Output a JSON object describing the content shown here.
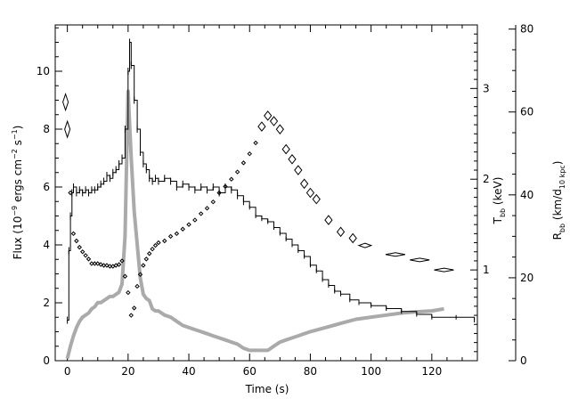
{
  "chart_data": {
    "type": "line",
    "grid": false,
    "legend": "none",
    "axes": {
      "x": {
        "label": "Time (s)",
        "range": [
          -4,
          135
        ],
        "ticks": [
          0,
          20,
          40,
          60,
          80,
          100,
          120
        ]
      },
      "y_left": {
        "label_main": "Flux (10",
        "label_exp1": "−9",
        "label_mid": " ergs cm",
        "label_exp2": "−2",
        "label_mid2": " s",
        "label_exp3": "−1",
        "label_end": ")",
        "range": [
          0,
          11.6
        ],
        "ticks": [
          0,
          2,
          4,
          6,
          8,
          10
        ]
      },
      "y_temp": {
        "label_main": "T",
        "label_sub": "bb",
        "label_end": " (keV)",
        "range": [
          0,
          3.7
        ],
        "ticks": [
          1,
          2,
          3
        ]
      },
      "y_radius": {
        "label_main": "R",
        "label_sub1": "bb",
        "label_mid": " (km/d",
        "label_sub2": "10 kpc",
        "label_end": ")",
        "range": [
          0,
          81
        ],
        "ticks": [
          0,
          20,
          40,
          60,
          80
        ]
      }
    },
    "series": [
      {
        "role": "flux",
        "axis": "y_left",
        "color": "#000000",
        "points": [
          [
            0,
            1.4
          ],
          [
            0.5,
            3.8
          ],
          [
            1,
            5.0
          ],
          [
            1.5,
            5.8
          ],
          [
            2,
            6.0
          ],
          [
            3,
            5.8
          ],
          [
            4,
            5.9
          ],
          [
            5,
            5.8
          ],
          [
            6,
            5.9
          ],
          [
            7,
            5.8
          ],
          [
            8,
            5.9
          ],
          [
            9,
            5.9
          ],
          [
            10,
            6.0
          ],
          [
            11,
            6.1
          ],
          [
            12,
            6.2
          ],
          [
            13,
            6.4
          ],
          [
            14,
            6.3
          ],
          [
            15,
            6.5
          ],
          [
            16,
            6.6
          ],
          [
            17,
            6.8
          ],
          [
            18,
            7.0
          ],
          [
            19,
            8.0
          ],
          [
            20,
            10.0
          ],
          [
            20.5,
            11.0
          ],
          [
            21,
            10.2
          ],
          [
            22,
            9.0
          ],
          [
            23,
            8.0
          ],
          [
            24,
            7.2
          ],
          [
            25,
            6.8
          ],
          [
            26,
            6.6
          ],
          [
            27,
            6.3
          ],
          [
            28,
            6.2
          ],
          [
            29,
            6.3
          ],
          [
            30,
            6.2
          ],
          [
            32,
            6.3
          ],
          [
            34,
            6.2
          ],
          [
            36,
            6.0
          ],
          [
            38,
            6.1
          ],
          [
            40,
            6.0
          ],
          [
            42,
            5.9
          ],
          [
            44,
            6.0
          ],
          [
            46,
            5.9
          ],
          [
            48,
            6.0
          ],
          [
            50,
            5.8
          ],
          [
            52,
            6.0
          ],
          [
            54,
            5.9
          ],
          [
            56,
            5.7
          ],
          [
            58,
            5.5
          ],
          [
            60,
            5.3
          ],
          [
            62,
            5.0
          ],
          [
            64,
            4.9
          ],
          [
            66,
            4.8
          ],
          [
            68,
            4.6
          ],
          [
            70,
            4.4
          ],
          [
            72,
            4.2
          ],
          [
            74,
            4.0
          ],
          [
            76,
            3.8
          ],
          [
            78,
            3.6
          ],
          [
            80,
            3.3
          ],
          [
            82,
            3.1
          ],
          [
            84,
            2.8
          ],
          [
            86,
            2.6
          ],
          [
            88,
            2.4
          ],
          [
            90,
            2.3
          ],
          [
            93,
            2.1
          ],
          [
            96,
            2.0
          ],
          [
            100,
            1.9
          ],
          [
            105,
            1.8
          ],
          [
            110,
            1.7
          ],
          [
            115,
            1.6
          ],
          [
            120,
            1.5
          ],
          [
            128,
            1.5
          ],
          [
            134,
            1.4
          ]
        ]
      },
      {
        "role": "temperature",
        "axis": "y_temp",
        "color": "#000000",
        "points": [
          [
            -0.6,
            2.85
          ],
          [
            0,
            2.55
          ],
          [
            1,
            1.85
          ],
          [
            2,
            1.4
          ],
          [
            3,
            1.32
          ],
          [
            4,
            1.25
          ],
          [
            5,
            1.2
          ],
          [
            6,
            1.16
          ],
          [
            7,
            1.12
          ],
          [
            8,
            1.07
          ],
          [
            9,
            1.07
          ],
          [
            10,
            1.07
          ],
          [
            11,
            1.06
          ],
          [
            12,
            1.05
          ],
          [
            13,
            1.05
          ],
          [
            14,
            1.04
          ],
          [
            15,
            1.04
          ],
          [
            16,
            1.05
          ],
          [
            17,
            1.06
          ],
          [
            18,
            1.1
          ],
          [
            19,
            0.93
          ],
          [
            20,
            0.75
          ],
          [
            21,
            0.5
          ],
          [
            22,
            0.58
          ],
          [
            23,
            0.82
          ],
          [
            24,
            0.95
          ],
          [
            25,
            1.05
          ],
          [
            26,
            1.12
          ],
          [
            27,
            1.18
          ],
          [
            28,
            1.23
          ],
          [
            29,
            1.27
          ],
          [
            30,
            1.3
          ],
          [
            32,
            1.32
          ],
          [
            34,
            1.37
          ],
          [
            36,
            1.4
          ],
          [
            38,
            1.45
          ],
          [
            40,
            1.5
          ],
          [
            42,
            1.55
          ],
          [
            44,
            1.62
          ],
          [
            46,
            1.68
          ],
          [
            48,
            1.75
          ],
          [
            50,
            1.85
          ],
          [
            52,
            1.92
          ],
          [
            54,
            2.0
          ],
          [
            56,
            2.08
          ],
          [
            58,
            2.18
          ],
          [
            60,
            2.28
          ],
          [
            62,
            2.4
          ],
          [
            64,
            2.58
          ],
          [
            66,
            2.7
          ],
          [
            68,
            2.64
          ],
          [
            70,
            2.55
          ],
          [
            72,
            2.33
          ],
          [
            74,
            2.22
          ],
          [
            76,
            2.1
          ],
          [
            78,
            1.95
          ],
          [
            80,
            1.85
          ],
          [
            82,
            1.78
          ],
          [
            86,
            1.55
          ],
          [
            90,
            1.42
          ],
          [
            94,
            1.35
          ],
          [
            98,
            1.27
          ],
          [
            108,
            1.17
          ],
          [
            116,
            1.11
          ],
          [
            124,
            1.0
          ]
        ]
      },
      {
        "role": "radius",
        "axis": "y_radius",
        "color": "#aaaaaa",
        "points": [
          [
            0,
            0.5
          ],
          [
            1,
            3.5
          ],
          [
            2,
            6
          ],
          [
            3,
            8
          ],
          [
            4,
            9.5
          ],
          [
            5,
            10.5
          ],
          [
            6,
            11
          ],
          [
            7,
            11.5
          ],
          [
            8,
            12.5
          ],
          [
            9,
            13
          ],
          [
            10,
            14
          ],
          [
            11,
            14
          ],
          [
            12,
            14.5
          ],
          [
            13,
            15
          ],
          [
            14,
            15.5
          ],
          [
            15,
            15.5
          ],
          [
            16,
            16
          ],
          [
            17,
            16.5
          ],
          [
            18,
            18.5
          ],
          [
            19,
            30
          ],
          [
            20,
            65
          ],
          [
            21,
            49
          ],
          [
            22,
            36
          ],
          [
            23,
            28
          ],
          [
            24,
            20
          ],
          [
            25,
            16
          ],
          [
            26,
            15
          ],
          [
            27,
            14.5
          ],
          [
            28,
            12.5
          ],
          [
            29,
            12
          ],
          [
            30,
            12
          ],
          [
            32,
            11
          ],
          [
            34,
            10.5
          ],
          [
            36,
            9.5
          ],
          [
            38,
            8.5
          ],
          [
            40,
            8
          ],
          [
            42,
            7.5
          ],
          [
            44,
            7
          ],
          [
            46,
            6.5
          ],
          [
            48,
            6
          ],
          [
            50,
            5.5
          ],
          [
            52,
            5
          ],
          [
            54,
            4.5
          ],
          [
            56,
            4
          ],
          [
            58,
            3
          ],
          [
            60,
            2.5
          ],
          [
            62,
            2.5
          ],
          [
            64,
            2.5
          ],
          [
            66,
            2.5
          ],
          [
            68,
            3.5
          ],
          [
            70,
            4.5
          ],
          [
            72,
            5
          ],
          [
            74,
            5.5
          ],
          [
            76,
            6
          ],
          [
            78,
            6.5
          ],
          [
            80,
            7
          ],
          [
            85,
            8
          ],
          [
            90,
            9
          ],
          [
            95,
            10
          ],
          [
            100,
            10.5
          ],
          [
            105,
            11
          ],
          [
            110,
            11.5
          ],
          [
            115,
            11.8
          ],
          [
            120,
            12
          ],
          [
            124,
            12.5
          ]
        ]
      }
    ]
  }
}
